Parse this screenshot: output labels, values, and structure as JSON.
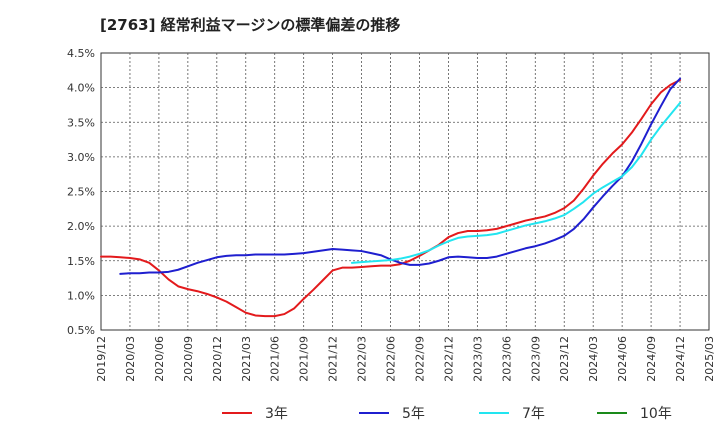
{
  "chart_data": {
    "type": "line",
    "title": "[2763]  経常利益マージンの標準偏差の推移",
    "xlabel": "",
    "ylabel": "",
    "ylim": [
      0.5,
      4.5
    ],
    "yticks": [
      "0.5%",
      "1.0%",
      "1.5%",
      "2.0%",
      "2.5%",
      "3.0%",
      "3.5%",
      "4.0%",
      "4.5%"
    ],
    "xticks": [
      "2019/12",
      "2020/03",
      "2020/06",
      "2020/09",
      "2020/12",
      "2021/03",
      "2021/06",
      "2021/09",
      "2021/12",
      "2022/03",
      "2022/06",
      "2022/09",
      "2022/12",
      "2023/03",
      "2023/06",
      "2023/09",
      "2023/12",
      "2024/03",
      "2024/06",
      "2024/09",
      "2024/12",
      "2025/03"
    ],
    "grid": true,
    "legend_position": "bottom",
    "series": [
      {
        "name": "3年",
        "color": "#e31a1c",
        "points": [
          [
            "2019/12",
            1.56
          ],
          [
            "2020/01",
            1.56
          ],
          [
            "2020/02",
            1.55
          ],
          [
            "2020/03",
            1.54
          ],
          [
            "2020/04",
            1.52
          ],
          [
            "2020/05",
            1.47
          ],
          [
            "2020/06",
            1.36
          ],
          [
            "2020/07",
            1.23
          ],
          [
            "2020/08",
            1.13
          ],
          [
            "2020/09",
            1.09
          ],
          [
            "2020/10",
            1.06
          ],
          [
            "2020/11",
            1.02
          ],
          [
            "2020/12",
            0.97
          ],
          [
            "2021/01",
            0.91
          ],
          [
            "2021/02",
            0.83
          ],
          [
            "2021/03",
            0.75
          ],
          [
            "2021/04",
            0.71
          ],
          [
            "2021/05",
            0.7
          ],
          [
            "2021/06",
            0.7
          ],
          [
            "2021/07",
            0.73
          ],
          [
            "2021/08",
            0.81
          ],
          [
            "2021/09",
            0.95
          ],
          [
            "2021/10",
            1.08
          ],
          [
            "2021/11",
            1.22
          ],
          [
            "2021/12",
            1.36
          ],
          [
            "2022/01",
            1.4
          ],
          [
            "2022/02",
            1.4
          ],
          [
            "2022/03",
            1.41
          ],
          [
            "2022/04",
            1.42
          ],
          [
            "2022/05",
            1.43
          ],
          [
            "2022/06",
            1.43
          ],
          [
            "2022/07",
            1.45
          ],
          [
            "2022/08",
            1.5
          ],
          [
            "2022/09",
            1.57
          ],
          [
            "2022/10",
            1.65
          ],
          [
            "2022/11",
            1.73
          ],
          [
            "2022/12",
            1.84
          ],
          [
            "2023/01",
            1.9
          ],
          [
            "2023/02",
            1.93
          ],
          [
            "2023/03",
            1.93
          ],
          [
            "2023/04",
            1.94
          ],
          [
            "2023/05",
            1.96
          ],
          [
            "2023/06",
            2.0
          ],
          [
            "2023/07",
            2.04
          ],
          [
            "2023/08",
            2.08
          ],
          [
            "2023/09",
            2.11
          ],
          [
            "2023/10",
            2.14
          ],
          [
            "2023/11",
            2.19
          ],
          [
            "2023/12",
            2.26
          ],
          [
            "2024/01",
            2.37
          ],
          [
            "2024/02",
            2.54
          ],
          [
            "2024/03",
            2.73
          ],
          [
            "2024/04",
            2.9
          ],
          [
            "2024/05",
            3.05
          ],
          [
            "2024/06",
            3.18
          ],
          [
            "2024/07",
            3.35
          ],
          [
            "2024/08",
            3.55
          ],
          [
            "2024/09",
            3.76
          ],
          [
            "2024/10",
            3.93
          ],
          [
            "2024/11",
            4.04
          ],
          [
            "2024/12",
            4.11
          ]
        ]
      },
      {
        "name": "5年",
        "color": "#1f1fcf",
        "points": [
          [
            "2020/02",
            1.31
          ],
          [
            "2020/03",
            1.32
          ],
          [
            "2020/04",
            1.32
          ],
          [
            "2020/05",
            1.33
          ],
          [
            "2020/06",
            1.33
          ],
          [
            "2020/07",
            1.34
          ],
          [
            "2020/08",
            1.37
          ],
          [
            "2020/09",
            1.42
          ],
          [
            "2020/10",
            1.47
          ],
          [
            "2020/11",
            1.51
          ],
          [
            "2020/12",
            1.55
          ],
          [
            "2021/01",
            1.57
          ],
          [
            "2021/02",
            1.58
          ],
          [
            "2021/03",
            1.58
          ],
          [
            "2021/04",
            1.59
          ],
          [
            "2021/05",
            1.59
          ],
          [
            "2021/06",
            1.59
          ],
          [
            "2021/07",
            1.59
          ],
          [
            "2021/08",
            1.6
          ],
          [
            "2021/09",
            1.61
          ],
          [
            "2021/10",
            1.63
          ],
          [
            "2021/11",
            1.65
          ],
          [
            "2021/12",
            1.67
          ],
          [
            "2022/01",
            1.66
          ],
          [
            "2022/02",
            1.65
          ],
          [
            "2022/03",
            1.64
          ],
          [
            "2022/04",
            1.61
          ],
          [
            "2022/05",
            1.58
          ],
          [
            "2022/06",
            1.52
          ],
          [
            "2022/07",
            1.47
          ],
          [
            "2022/08",
            1.44
          ],
          [
            "2022/09",
            1.44
          ],
          [
            "2022/10",
            1.46
          ],
          [
            "2022/11",
            1.5
          ],
          [
            "2022/12",
            1.55
          ],
          [
            "2023/01",
            1.56
          ],
          [
            "2023/02",
            1.55
          ],
          [
            "2023/03",
            1.54
          ],
          [
            "2023/04",
            1.54
          ],
          [
            "2023/05",
            1.56
          ],
          [
            "2023/06",
            1.6
          ],
          [
            "2023/07",
            1.64
          ],
          [
            "2023/08",
            1.68
          ],
          [
            "2023/09",
            1.71
          ],
          [
            "2023/10",
            1.75
          ],
          [
            "2023/11",
            1.8
          ],
          [
            "2023/12",
            1.86
          ],
          [
            "2024/01",
            1.96
          ],
          [
            "2024/02",
            2.1
          ],
          [
            "2024/03",
            2.27
          ],
          [
            "2024/04",
            2.43
          ],
          [
            "2024/05",
            2.58
          ],
          [
            "2024/06",
            2.72
          ],
          [
            "2024/07",
            2.93
          ],
          [
            "2024/08",
            3.19
          ],
          [
            "2024/09",
            3.47
          ],
          [
            "2024/10",
            3.73
          ],
          [
            "2024/11",
            3.98
          ],
          [
            "2024/12",
            4.13
          ]
        ]
      },
      {
        "name": "7年",
        "color": "#22e5f0",
        "points": [
          [
            "2022/02",
            1.47
          ],
          [
            "2022/03",
            1.48
          ],
          [
            "2022/04",
            1.49
          ],
          [
            "2022/05",
            1.5
          ],
          [
            "2022/06",
            1.51
          ],
          [
            "2022/07",
            1.53
          ],
          [
            "2022/08",
            1.56
          ],
          [
            "2022/09",
            1.6
          ],
          [
            "2022/10",
            1.65
          ],
          [
            "2022/11",
            1.72
          ],
          [
            "2022/12",
            1.78
          ],
          [
            "2023/01",
            1.83
          ],
          [
            "2023/02",
            1.85
          ],
          [
            "2023/03",
            1.86
          ],
          [
            "2023/04",
            1.87
          ],
          [
            "2023/05",
            1.89
          ],
          [
            "2023/06",
            1.93
          ],
          [
            "2023/07",
            1.97
          ],
          [
            "2023/08",
            2.01
          ],
          [
            "2023/09",
            2.04
          ],
          [
            "2023/10",
            2.07
          ],
          [
            "2023/11",
            2.11
          ],
          [
            "2023/12",
            2.16
          ],
          [
            "2024/01",
            2.25
          ],
          [
            "2024/02",
            2.35
          ],
          [
            "2024/03",
            2.47
          ],
          [
            "2024/04",
            2.56
          ],
          [
            "2024/05",
            2.64
          ],
          [
            "2024/06",
            2.72
          ],
          [
            "2024/07",
            2.85
          ],
          [
            "2024/08",
            3.03
          ],
          [
            "2024/09",
            3.25
          ],
          [
            "2024/10",
            3.44
          ],
          [
            "2024/11",
            3.61
          ],
          [
            "2024/12",
            3.78
          ]
        ]
      },
      {
        "name": "10年",
        "color": "#1a8a1a",
        "points": []
      }
    ]
  }
}
